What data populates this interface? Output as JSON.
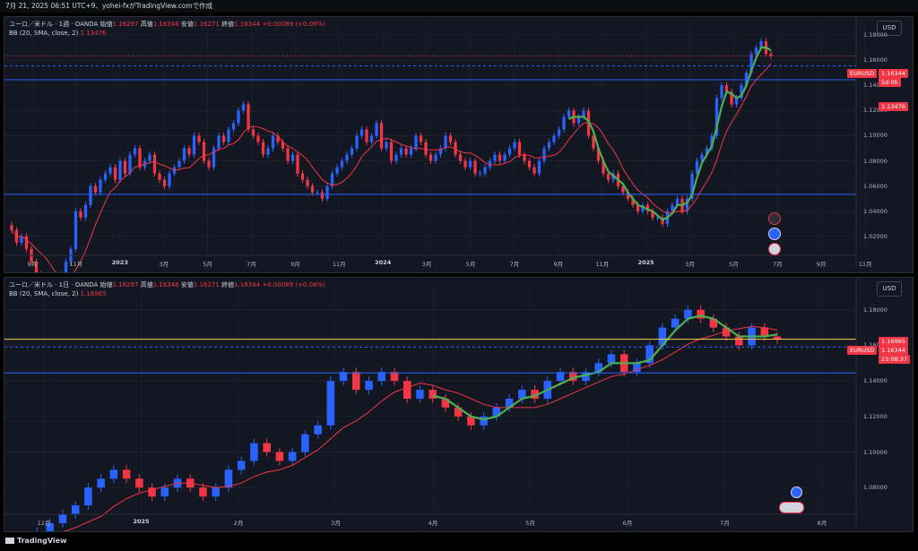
{
  "header": {
    "text": "7月 21, 2025 06:51 UTC+9、yohei-fxがTradingView.comで作成"
  },
  "footer": {
    "brand": "TradingView"
  },
  "currency_button": "USD",
  "panel1": {
    "legend_line1_prefix": "ユーロ／米ドル · 1週 · OANDA",
    "open_label": "始値",
    "open": "1.16297",
    "high_label": "高値",
    "high": "1.16346",
    "low_label": "安値",
    "low": "1.16271",
    "close_label": "終値",
    "close": "1.16344",
    "change": "+0.00089 (+0.08%)",
    "bb_label": "BB (20, SMA, close, 2)",
    "bb_value": "1.13476",
    "y_ticks": [
      "1.18000",
      "1.16000",
      "1.14000",
      "1.12000",
      "1.10000",
      "1.08000",
      "1.06000",
      "1.04000",
      "1.02000"
    ],
    "x_ticks": [
      "9月",
      "11月",
      "2023",
      "3月",
      "5月",
      "7月",
      "9月",
      "11月",
      "2024",
      "3月",
      "5月",
      "7月",
      "9月",
      "11月",
      "2025",
      "3月",
      "5月",
      "7月",
      "9月",
      "11月"
    ],
    "tag_symbol": "EURUSD",
    "tag_price": "1.16344",
    "tag_countdown": "5d 0h",
    "tag_bb": "1.13476",
    "chart_data": {
      "type": "candlestick",
      "ylim": [
        1.005,
        1.19
      ],
      "close": [
        1.025,
        1.015,
        1.02,
        1.01,
        1.0,
        0.99,
        0.985,
        0.975,
        0.98,
        0.97,
        0.99,
        1.0,
        1.01,
        1.04,
        1.035,
        1.045,
        1.06,
        1.055,
        1.065,
        1.07,
        1.075,
        1.065,
        1.08,
        1.07,
        1.085,
        1.09,
        1.075,
        1.08,
        1.085,
        1.07,
        1.065,
        1.06,
        1.07,
        1.075,
        1.08,
        1.09,
        1.085,
        1.1,
        1.095,
        1.08,
        1.075,
        1.09,
        1.1,
        1.095,
        1.105,
        1.11,
        1.12,
        1.125,
        1.105,
        1.1,
        1.095,
        1.085,
        1.09,
        1.1,
        1.095,
        1.09,
        1.08,
        1.085,
        1.07,
        1.065,
        1.06,
        1.055,
        1.055,
        1.05,
        1.06,
        1.07,
        1.075,
        1.08,
        1.085,
        1.09,
        1.1,
        1.105,
        1.095,
        1.1,
        1.11,
        1.09,
        1.095,
        1.08,
        1.085,
        1.09,
        1.085,
        1.09,
        1.1,
        1.095,
        1.085,
        1.08,
        1.085,
        1.09,
        1.1,
        1.095,
        1.085,
        1.08,
        1.075,
        1.08,
        1.07,
        1.07,
        1.075,
        1.08,
        1.085,
        1.08,
        1.085,
        1.09,
        1.095,
        1.085,
        1.08,
        1.075,
        1.07,
        1.08,
        1.09,
        1.095,
        1.1,
        1.105,
        1.115,
        1.12,
        1.11,
        1.115,
        1.12,
        1.1,
        1.09,
        1.08,
        1.07,
        1.065,
        1.07,
        1.06,
        1.055,
        1.05,
        1.045,
        1.04,
        1.045,
        1.04,
        1.035,
        1.035,
        1.03,
        1.04,
        1.045,
        1.05,
        1.04,
        1.05,
        1.07,
        1.08,
        1.085,
        1.09,
        1.1,
        1.13,
        1.14,
        1.135,
        1.125,
        1.13,
        1.14,
        1.15,
        1.165,
        1.17,
        1.175,
        1.165,
        1.16344
      ],
      "bb_basis_range": [
        1.13476
      ]
    }
  },
  "panel2": {
    "legend_line1_prefix": "ユーロ／米ドル · 1日 · OANDA",
    "open_label": "始値",
    "open": "1.16297",
    "high_label": "高値",
    "high": "1.16346",
    "low_label": "安値",
    "low": "1.16271",
    "close_label": "終値",
    "close": "1.16344",
    "change": "+0.00089 (+0.08%)",
    "bb_label": "BB (20, SMA, close, 2)",
    "bb_value": "1.16965",
    "y_ticks": [
      "1.18000",
      "1.16000",
      "1.14000",
      "1.12000",
      "1.10000",
      "1.08000"
    ],
    "x_ticks": [
      "12月",
      "2025",
      "2月",
      "3月",
      "4月",
      "5月",
      "6月",
      "7月",
      "8月"
    ],
    "tag_bb": "1.16965",
    "tag_symbol": "EURUSD",
    "tag_price": "1.16344",
    "tag_countdown": "23:08:37",
    "chart_data": {
      "type": "candlestick",
      "ylim": [
        1.065,
        1.195
      ],
      "close": [
        1.045,
        1.05,
        1.055,
        1.06,
        1.065,
        1.07,
        1.08,
        1.085,
        1.09,
        1.085,
        1.08,
        1.075,
        1.08,
        1.085,
        1.08,
        1.075,
        1.08,
        1.09,
        1.095,
        1.105,
        1.1,
        1.095,
        1.1,
        1.11,
        1.115,
        1.14,
        1.145,
        1.135,
        1.14,
        1.145,
        1.14,
        1.13,
        1.135,
        1.13,
        1.125,
        1.12,
        1.115,
        1.12,
        1.125,
        1.13,
        1.135,
        1.13,
        1.14,
        1.145,
        1.14,
        1.145,
        1.15,
        1.155,
        1.145,
        1.15,
        1.16,
        1.17,
        1.175,
        1.18,
        1.175,
        1.17,
        1.165,
        1.16,
        1.17,
        1.165,
        1.16344
      ],
      "bb_basis_range": [
        1.16965
      ]
    }
  }
}
